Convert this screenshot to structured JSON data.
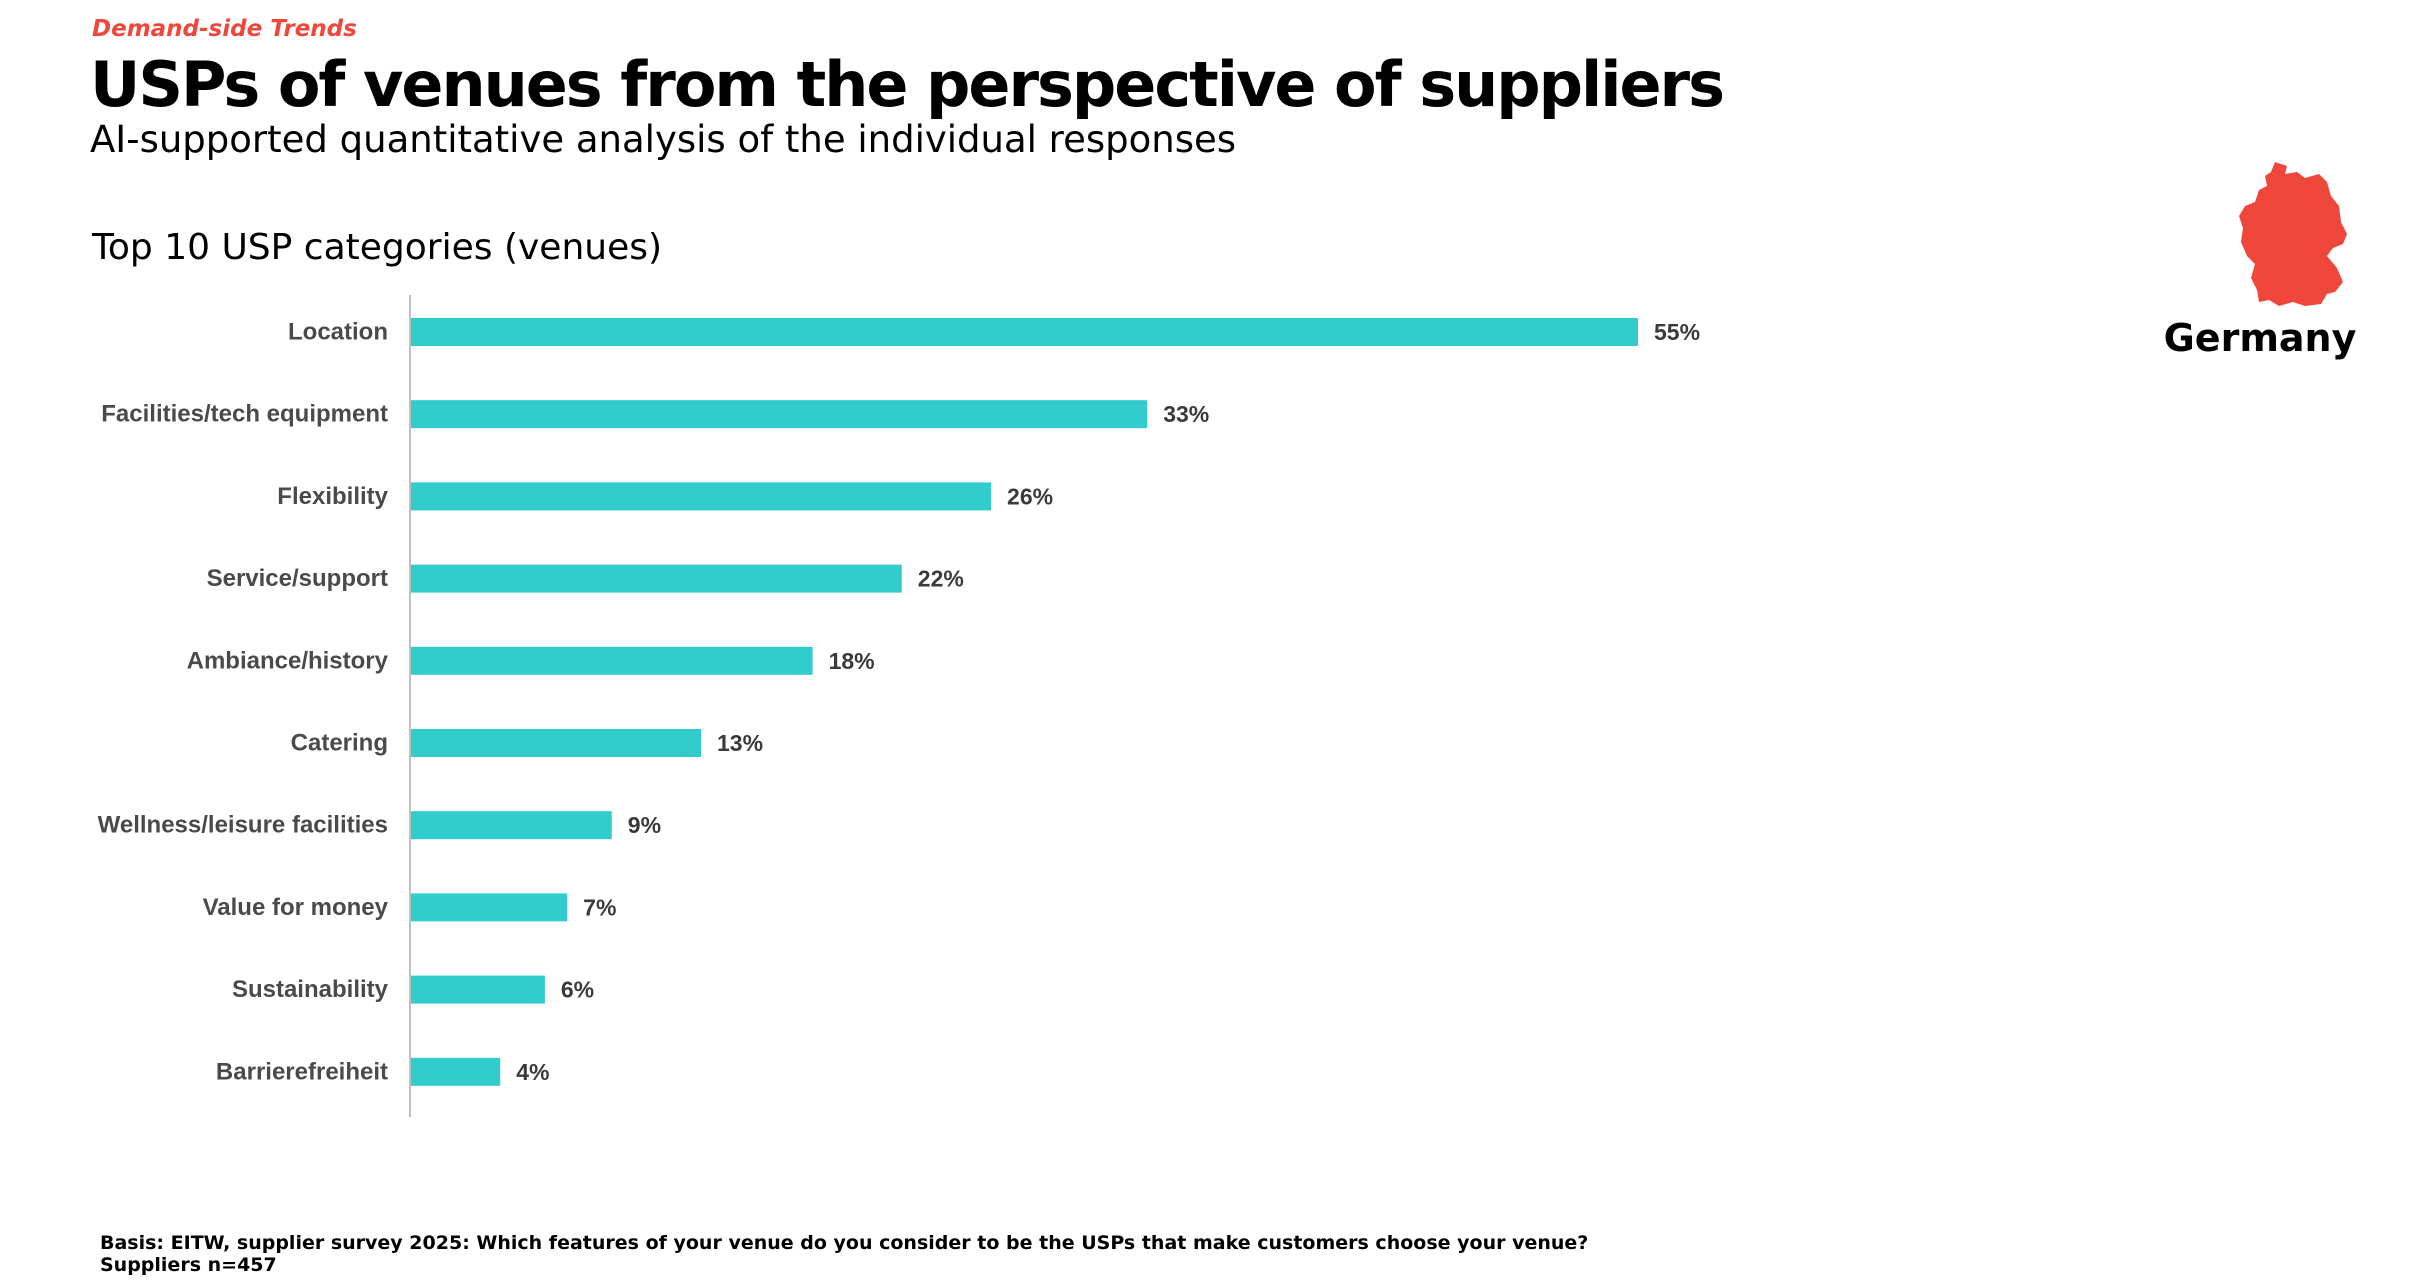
{
  "header": {
    "kicker": "Demand-side Trends",
    "title": "USPs of venues from the perspective of suppliers",
    "subtitle": "AI-supported quantitative analysis of the individual responses"
  },
  "country": {
    "label": "Germany",
    "icon": "germany-map-icon"
  },
  "colors": {
    "accent": "#f0473c",
    "bar": "#33cccc",
    "label": "#4a4a4a",
    "axis": "#bfbfbf"
  },
  "chart_data": {
    "type": "bar",
    "orientation": "horizontal",
    "title": "Top 10 USP categories (venues)",
    "categories": [
      "Location",
      "Facilities/tech equipment",
      "Flexibility",
      "Service/support",
      "Ambiance/history",
      "Catering",
      "Wellness/leisure facilities",
      "Value for money",
      "Sustainability",
      "Barrierefreiheit"
    ],
    "values": [
      55,
      33,
      26,
      22,
      18,
      13,
      9,
      7,
      6,
      4
    ],
    "value_labels": [
      "55%",
      "33%",
      "26%",
      "22%",
      "18%",
      "13%",
      "9%",
      "7%",
      "6%",
      "4%"
    ],
    "unit": "%",
    "xlabel": "",
    "ylabel": "",
    "xlim": [
      0,
      55
    ],
    "grid": false,
    "legend": "none"
  },
  "footnote": {
    "line1": "Basis: EITW, supplier survey 2025: Which features of your venue do you consider to be the USPs that make customers choose your venue?",
    "line2": "Suppliers n=457"
  }
}
